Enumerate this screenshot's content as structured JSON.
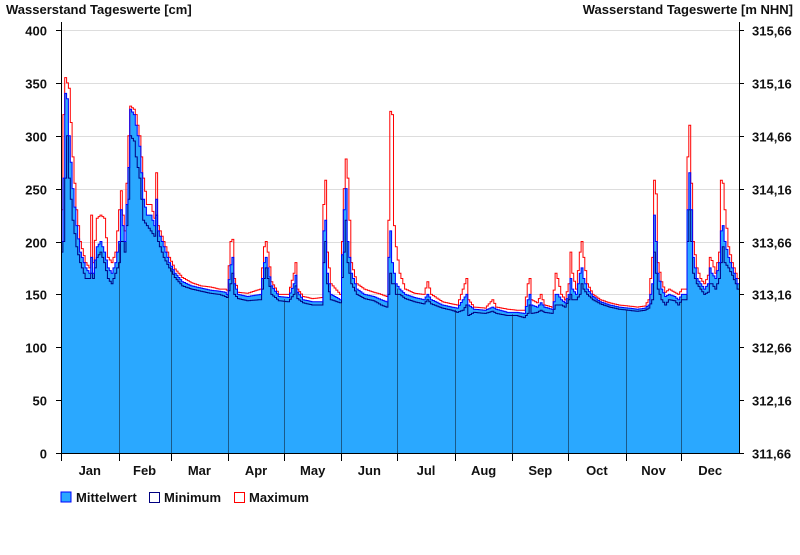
{
  "chart_data": {
    "type": "area",
    "title_left": "Wasserstand Tageswerte [cm]",
    "title_right": "Wasserstand Tageswerte [m NHN]",
    "ylim": [
      0,
      400
    ],
    "yticks": [
      0,
      50,
      100,
      150,
      200,
      250,
      300,
      350,
      400
    ],
    "yticks_right": [
      "311,66",
      "312,16",
      "312,66",
      "313,16",
      "313,66",
      "314,16",
      "314,66",
      "315,16",
      "315,66"
    ],
    "months": [
      "Jan",
      "Feb",
      "Mar",
      "Apr",
      "May",
      "Jun",
      "Jul",
      "Aug",
      "Sep",
      "Oct",
      "Nov",
      "Dec"
    ],
    "month_start_days": [
      0,
      31,
      59,
      90,
      120,
      151,
      181,
      212,
      243,
      273,
      304,
      334,
      365
    ],
    "grid": true,
    "legend_position": "bottom-left",
    "legend": [
      "Mittelwert",
      "Minimum",
      "Maximum"
    ],
    "colors": {
      "fill": "#2aa8ff",
      "mean": "#0000ff",
      "min": "#000080",
      "max": "#ff0000",
      "grid": "#dddddd",
      "month_line": "#1a5a8a"
    },
    "columns": [
      "day",
      "mean",
      "min",
      "max"
    ],
    "series": [
      [
        0,
        200,
        190,
        230
      ],
      [
        1,
        260,
        200,
        320
      ],
      [
        2,
        340,
        260,
        355
      ],
      [
        3,
        335,
        300,
        350
      ],
      [
        4,
        300,
        260,
        345
      ],
      [
        6,
        250,
        220,
        280
      ],
      [
        8,
        215,
        195,
        230
      ],
      [
        10,
        190,
        180,
        200
      ],
      [
        13,
        175,
        165,
        180
      ],
      [
        15,
        170,
        165,
        175
      ],
      [
        16,
        185,
        170,
        225
      ],
      [
        17,
        170,
        165,
        180
      ],
      [
        19,
        195,
        185,
        222
      ],
      [
        21,
        200,
        190,
        225
      ],
      [
        23,
        190,
        180,
        222
      ],
      [
        25,
        175,
        165,
        185
      ],
      [
        27,
        170,
        160,
        180
      ],
      [
        29,
        180,
        170,
        190
      ],
      [
        31,
        200,
        180,
        230
      ],
      [
        32,
        230,
        200,
        248
      ],
      [
        33,
        215,
        200,
        225
      ],
      [
        34,
        200,
        190,
        210
      ],
      [
        36,
        270,
        240,
        300
      ],
      [
        37,
        325,
        300,
        328
      ],
      [
        39,
        320,
        295,
        325
      ],
      [
        40,
        310,
        280,
        320
      ],
      [
        42,
        290,
        260,
        300
      ],
      [
        44,
        240,
        220,
        260
      ],
      [
        46,
        225,
        215,
        235
      ],
      [
        48,
        225,
        210,
        235
      ],
      [
        50,
        215,
        205,
        222
      ],
      [
        51,
        240,
        225,
        265
      ],
      [
        52,
        210,
        200,
        215
      ],
      [
        55,
        195,
        185,
        200
      ],
      [
        58,
        180,
        175,
        185
      ],
      [
        61,
        170,
        166,
        174
      ],
      [
        65,
        162,
        158,
        166
      ],
      [
        70,
        158,
        155,
        161
      ],
      [
        75,
        156,
        153,
        158
      ],
      [
        80,
        154,
        151,
        157
      ],
      [
        85,
        153,
        150,
        155
      ],
      [
        88,
        152,
        148,
        155
      ],
      [
        89,
        150,
        147,
        154
      ],
      [
        91,
        178,
        160,
        200
      ],
      [
        92,
        185,
        170,
        202
      ],
      [
        93,
        160,
        150,
        165
      ],
      [
        95,
        150,
        146,
        152
      ],
      [
        100,
        148,
        144,
        151
      ],
      [
        107,
        150,
        145,
        155
      ],
      [
        109,
        180,
        165,
        195
      ],
      [
        110,
        185,
        175,
        200
      ],
      [
        111,
        175,
        165,
        190
      ],
      [
        113,
        158,
        150,
        162
      ],
      [
        117,
        148,
        144,
        150
      ],
      [
        122,
        147,
        143,
        150
      ],
      [
        125,
        160,
        150,
        170
      ],
      [
        126,
        168,
        158,
        180
      ],
      [
        127,
        152,
        146,
        155
      ],
      [
        130,
        145,
        142,
        148
      ],
      [
        135,
        143,
        140,
        146
      ],
      [
        140,
        143,
        140,
        147
      ],
      [
        141,
        210,
        180,
        235
      ],
      [
        142,
        220,
        200,
        258
      ],
      [
        143,
        170,
        160,
        190
      ],
      [
        145,
        150,
        145,
        160
      ],
      [
        150,
        145,
        142,
        150
      ],
      [
        152,
        230,
        190,
        250
      ],
      [
        153,
        250,
        220,
        278
      ],
      [
        154,
        200,
        180,
        260
      ],
      [
        156,
        170,
        160,
        180
      ],
      [
        159,
        155,
        150,
        160
      ],
      [
        163,
        150,
        146,
        155
      ],
      [
        168,
        148,
        144,
        152
      ],
      [
        172,
        145,
        140,
        150
      ],
      [
        175,
        143,
        138,
        148
      ],
      [
        176,
        185,
        150,
        220
      ],
      [
        177,
        210,
        170,
        323
      ],
      [
        178,
        180,
        160,
        320
      ],
      [
        179,
        170,
        160,
        215
      ],
      [
        180,
        160,
        150,
        195
      ],
      [
        182,
        155,
        150,
        170
      ],
      [
        185,
        150,
        146,
        155
      ],
      [
        190,
        147,
        143,
        151
      ],
      [
        195,
        145,
        141,
        150
      ],
      [
        197,
        150,
        145,
        162
      ],
      [
        199,
        145,
        141,
        150
      ],
      [
        205,
        140,
        137,
        143
      ],
      [
        210,
        138,
        135,
        141
      ],
      [
        213,
        137,
        133,
        140
      ],
      [
        216,
        145,
        135,
        155
      ],
      [
        218,
        150,
        140,
        165
      ],
      [
        219,
        140,
        130,
        145
      ],
      [
        222,
        136,
        133,
        138
      ],
      [
        228,
        135,
        132,
        137
      ],
      [
        232,
        138,
        134,
        145
      ],
      [
        234,
        136,
        132,
        138
      ],
      [
        240,
        133,
        130,
        136
      ],
      [
        245,
        133,
        130,
        135
      ],
      [
        249,
        132,
        128,
        135
      ],
      [
        251,
        145,
        132,
        160
      ],
      [
        252,
        150,
        140,
        165
      ],
      [
        253,
        140,
        132,
        145
      ],
      [
        256,
        138,
        133,
        142
      ],
      [
        258,
        142,
        135,
        150
      ],
      [
        260,
        138,
        133,
        140
      ],
      [
        264,
        136,
        132,
        138
      ],
      [
        266,
        150,
        140,
        170
      ],
      [
        267,
        150,
        140,
        165
      ],
      [
        269,
        145,
        140,
        150
      ],
      [
        271,
        142,
        138,
        145
      ],
      [
        273,
        150,
        145,
        160
      ],
      [
        274,
        165,
        150,
        190
      ],
      [
        275,
        155,
        145,
        170
      ],
      [
        277,
        150,
        145,
        155
      ],
      [
        279,
        170,
        150,
        190
      ],
      [
        280,
        175,
        160,
        200
      ],
      [
        281,
        165,
        155,
        185
      ],
      [
        283,
        155,
        150,
        160
      ],
      [
        286,
        148,
        145,
        150
      ],
      [
        290,
        143,
        141,
        145
      ],
      [
        295,
        140,
        138,
        142
      ],
      [
        300,
        138,
        136,
        140
      ],
      [
        305,
        137,
        135,
        139
      ],
      [
        310,
        136,
        134,
        138
      ],
      [
        314,
        137,
        135,
        139
      ],
      [
        316,
        140,
        137,
        145
      ],
      [
        318,
        160,
        145,
        185
      ],
      [
        319,
        225,
        190,
        258
      ],
      [
        320,
        200,
        170,
        245
      ],
      [
        321,
        170,
        155,
        180
      ],
      [
        323,
        155,
        145,
        162
      ],
      [
        325,
        148,
        140,
        152
      ],
      [
        327,
        150,
        145,
        155
      ],
      [
        330,
        148,
        144,
        152
      ],
      [
        332,
        145,
        140,
        150
      ],
      [
        334,
        150,
        145,
        155
      ],
      [
        336,
        150,
        145,
        155
      ],
      [
        337,
        230,
        200,
        280
      ],
      [
        338,
        265,
        230,
        310
      ],
      [
        339,
        230,
        200,
        255
      ],
      [
        340,
        185,
        170,
        200
      ],
      [
        342,
        165,
        160,
        175
      ],
      [
        344,
        160,
        155,
        165
      ],
      [
        346,
        155,
        150,
        160
      ],
      [
        348,
        160,
        152,
        168
      ],
      [
        349,
        175,
        160,
        185
      ],
      [
        350,
        170,
        160,
        182
      ],
      [
        352,
        165,
        155,
        170
      ],
      [
        354,
        180,
        165,
        190
      ],
      [
        355,
        210,
        180,
        258
      ],
      [
        356,
        215,
        195,
        255
      ],
      [
        357,
        200,
        180,
        230
      ],
      [
        359,
        185,
        175,
        195
      ],
      [
        361,
        175,
        168,
        180
      ],
      [
        363,
        165,
        160,
        170
      ],
      [
        364,
        160,
        155,
        165
      ]
    ]
  }
}
